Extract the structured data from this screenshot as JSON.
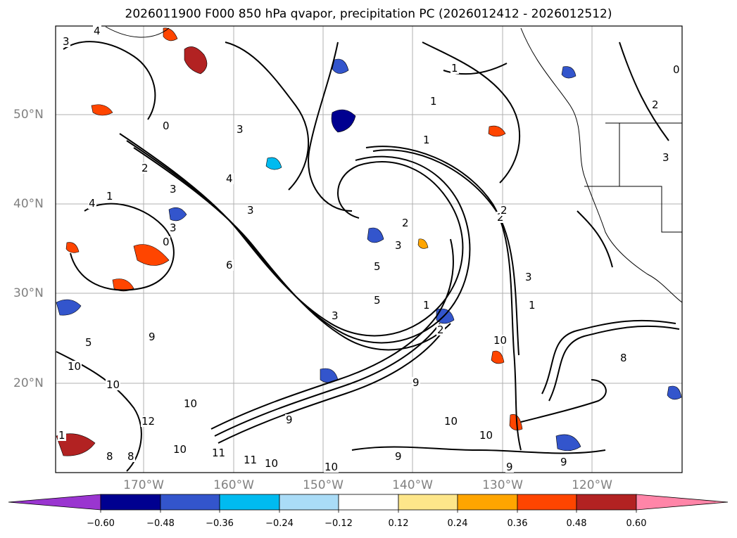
{
  "title": "2026011900 F000 850 hPa qvapor, precipitation PC (2026012412 - 2026012512)",
  "map": {
    "lat_labels": [
      "50°N",
      "40°N",
      "30°N",
      "20°N"
    ],
    "lon_labels": [
      "170°W",
      "160°W",
      "150°W",
      "140°W",
      "130°W",
      "120°W"
    ],
    "contour_labels": [
      "3",
      "4",
      "3",
      "1",
      "0",
      "2",
      "1",
      "0",
      "3",
      "1",
      "2",
      "1",
      "4",
      "3",
      "5",
      "4",
      "0",
      "3",
      "2",
      "1",
      "3",
      "2",
      "3",
      "6",
      "5",
      "1",
      "2",
      "1",
      "5",
      "9",
      "10",
      "10",
      "8",
      "8",
      "10",
      "12",
      "10",
      "11",
      "11",
      "10",
      "9",
      "10",
      "9",
      "9",
      "10",
      "10",
      "10",
      "9",
      "9",
      "8",
      "3",
      "2",
      "3"
    ]
  },
  "colorbar": {
    "tick_labels": [
      "−0.60",
      "−0.48",
      "−0.36",
      "−0.24",
      "−0.12",
      "0.12",
      "0.24",
      "0.36",
      "0.48",
      "0.60"
    ],
    "segment_colors": [
      "#9a35d0",
      "#000090",
      "#3355cc",
      "#00bbf0",
      "#aadcf7",
      "#ffffff",
      "#fde68a",
      "#ffa500",
      "#ff4500",
      "#b22222",
      "#ff85a8"
    ]
  }
}
